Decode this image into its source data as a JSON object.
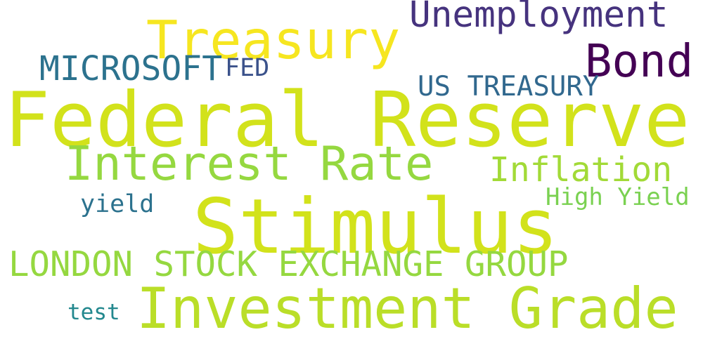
{
  "words": [
    {
      "text": "Federal Reserve",
      "color": "#d2e21b"
    },
    {
      "text": "Stimulus",
      "color": "#d2e21b"
    },
    {
      "text": "Investment Grade",
      "color": "#bade28"
    },
    {
      "text": "Treasury",
      "color": "#f6e620"
    },
    {
      "text": "Interest Rate",
      "color": "#95d840"
    },
    {
      "text": "Bond",
      "color": "#440154"
    },
    {
      "text": "Unemployment",
      "color": "#46337e"
    },
    {
      "text": "MICROSOFT",
      "color": "#2c728e"
    },
    {
      "text": "LONDON STOCK EXCHANGE GROUP",
      "color": "#95d840"
    },
    {
      "text": "Inflation",
      "color": "#a2da37"
    },
    {
      "text": "US TREASURY",
      "color": "#31688e"
    },
    {
      "text": "FED",
      "color": "#3b528b"
    },
    {
      "text": "yield",
      "color": "#2c728e"
    },
    {
      "text": "High Yield",
      "color": "#7ad151"
    },
    {
      "text": "test",
      "color": "#23888e"
    }
  ]
}
